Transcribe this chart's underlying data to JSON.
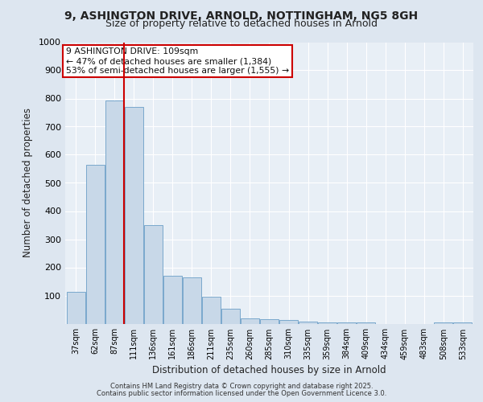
{
  "title_line1": "9, ASHINGTON DRIVE, ARNOLD, NOTTINGHAM, NG5 8GH",
  "title_line2": "Size of property relative to detached houses in Arnold",
  "xlabel": "Distribution of detached houses by size in Arnold",
  "ylabel": "Number of detached properties",
  "categories": [
    "37sqm",
    "62sqm",
    "87sqm",
    "111sqm",
    "136sqm",
    "161sqm",
    "186sqm",
    "211sqm",
    "235sqm",
    "260sqm",
    "285sqm",
    "310sqm",
    "335sqm",
    "359sqm",
    "384sqm",
    "409sqm",
    "434sqm",
    "459sqm",
    "483sqm",
    "508sqm",
    "533sqm"
  ],
  "values": [
    113,
    563,
    793,
    770,
    350,
    170,
    165,
    97,
    52,
    20,
    15,
    12,
    8,
    5,
    5,
    3,
    0,
    0,
    0,
    5,
    3
  ],
  "bar_color": "#c8d8e8",
  "bar_edge_color": "#7aa8cc",
  "vline_color": "#cc0000",
  "vline_x": 2.5,
  "annotation_text": "9 ASHINGTON DRIVE: 109sqm\n← 47% of detached houses are smaller (1,384)\n53% of semi-detached houses are larger (1,555) →",
  "annotation_box_facecolor": "#ffffff",
  "annotation_box_edgecolor": "#cc0000",
  "ylim": [
    0,
    1000
  ],
  "yticks": [
    0,
    100,
    200,
    300,
    400,
    500,
    600,
    700,
    800,
    900,
    1000
  ],
  "bg_color": "#dde6f0",
  "plot_bg_color": "#e8eff6",
  "grid_color": "#ffffff",
  "footer_line1": "Contains HM Land Registry data © Crown copyright and database right 2025.",
  "footer_line2": "Contains public sector information licensed under the Open Government Licence 3.0."
}
